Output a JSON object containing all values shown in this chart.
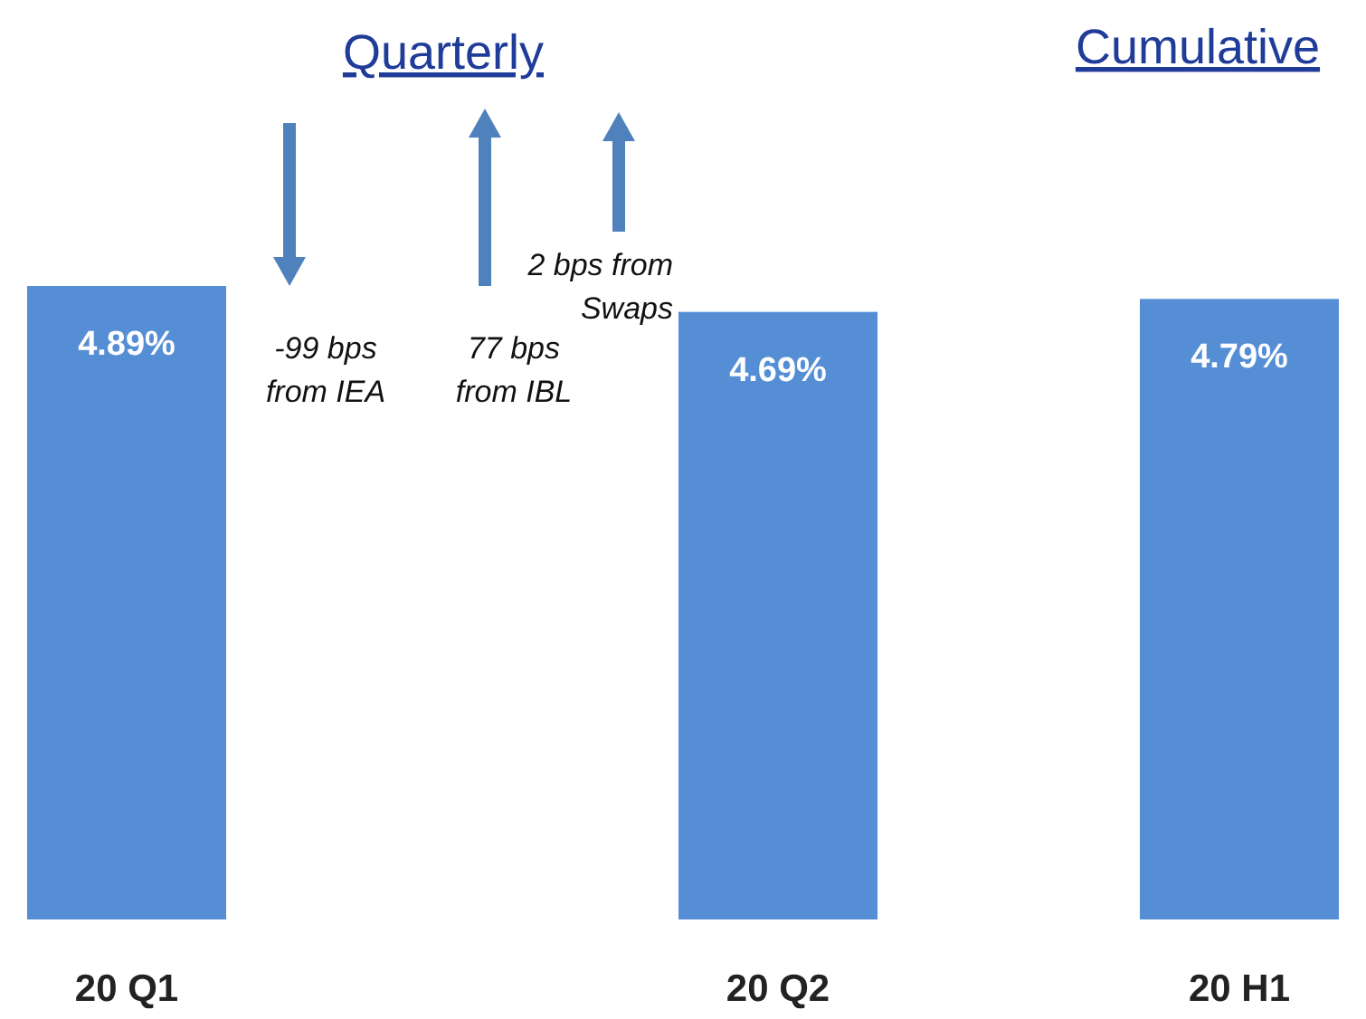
{
  "chart_data": {
    "type": "bar",
    "categories": [
      "20 Q1",
      "20 Q2",
      "20 H1"
    ],
    "values": [
      4.89,
      4.69,
      4.79
    ],
    "color": "#558ed5",
    "value_labels": [
      "4.89%",
      "4.69%",
      "4.79%"
    ],
    "annotations": [
      "Quarterly",
      "Cumulative",
      "-99 bps from IEA",
      "77 bps from IBL",
      "2 bps from Swaps"
    ]
  }
}
